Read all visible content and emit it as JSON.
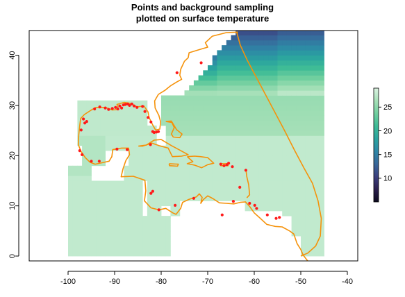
{
  "chart_data": {
    "type": "heatmap",
    "title_lines": [
      "Points and background sampling",
      "plotted on surface temperature"
    ],
    "xlim": [
      -108,
      -38
    ],
    "ylim": [
      -1,
      45
    ],
    "x_ticks": [
      -100,
      -90,
      -80,
      -70,
      -60,
      -50,
      -40
    ],
    "y_ticks": [
      0,
      10,
      20,
      30,
      40
    ],
    "colorbar": {
      "ticks": [
        10,
        15,
        20,
        25
      ],
      "range": [
        5,
        29
      ],
      "colors": [
        "#0d0a1e",
        "#2b1f4d",
        "#3b3f7e",
        "#38679a",
        "#2e86a6",
        "#2aa39f",
        "#3dbb96",
        "#71cf9f",
        "#a6e0b8",
        "#dbf3e2"
      ]
    },
    "grid": false,
    "points": [
      [
        -96.7,
        27.3
      ],
      [
        -96.4,
        26.5
      ],
      [
        -96.0,
        26.8
      ],
      [
        -97.2,
        25.1
      ],
      [
        -97.5,
        21.0
      ],
      [
        -97.0,
        20.2
      ],
      [
        -95.0,
        18.9
      ],
      [
        -93.3,
        18.9
      ],
      [
        -94.3,
        29.3
      ],
      [
        -93.2,
        29.7
      ],
      [
        -92.0,
        29.5
      ],
      [
        -91.3,
        29.2
      ],
      [
        -90.5,
        29.4
      ],
      [
        -89.8,
        29.6
      ],
      [
        -89.3,
        29.3
      ],
      [
        -88.9,
        29.9
      ],
      [
        -88.5,
        29.5
      ],
      [
        -88.1,
        30.1
      ],
      [
        -87.7,
        30.2
      ],
      [
        -87.2,
        30.3
      ],
      [
        -86.8,
        30.0
      ],
      [
        -86.3,
        30.3
      ],
      [
        -85.8,
        29.9
      ],
      [
        -85.2,
        29.6
      ],
      [
        -84.0,
        29.8
      ],
      [
        -83.5,
        28.8
      ],
      [
        -82.8,
        27.6
      ],
      [
        -82.2,
        26.7
      ],
      [
        -81.5,
        24.6
      ],
      [
        -81.8,
        24.8
      ],
      [
        -80.6,
        24.8
      ],
      [
        -82.3,
        22.2
      ],
      [
        -81.0,
        24.7
      ],
      [
        -89.5,
        21.3
      ],
      [
        -87.3,
        21.2
      ],
      [
        -76.6,
        36.5
      ],
      [
        -71.4,
        38.5
      ],
      [
        -67.2,
        18.3
      ],
      [
        -66.5,
        18.0
      ],
      [
        -65.9,
        18.2
      ],
      [
        -65.5,
        18.5
      ],
      [
        -64.7,
        17.8
      ],
      [
        -61.8,
        17.1
      ],
      [
        -63.1,
        13.7
      ],
      [
        -61.0,
        10.5
      ],
      [
        -59.9,
        10.1
      ],
      [
        -59.5,
        9.5
      ],
      [
        -57.2,
        8.2
      ],
      [
        -55.3,
        7.5
      ],
      [
        -54.6,
        7.7
      ],
      [
        -82.2,
        12.5
      ],
      [
        -81.8,
        12.9
      ],
      [
        -80.5,
        9.2
      ],
      [
        -77.0,
        10.1
      ],
      [
        -73.0,
        11.5
      ],
      [
        -64.5,
        10.9
      ],
      [
        -66.9,
        8.2
      ]
    ]
  }
}
